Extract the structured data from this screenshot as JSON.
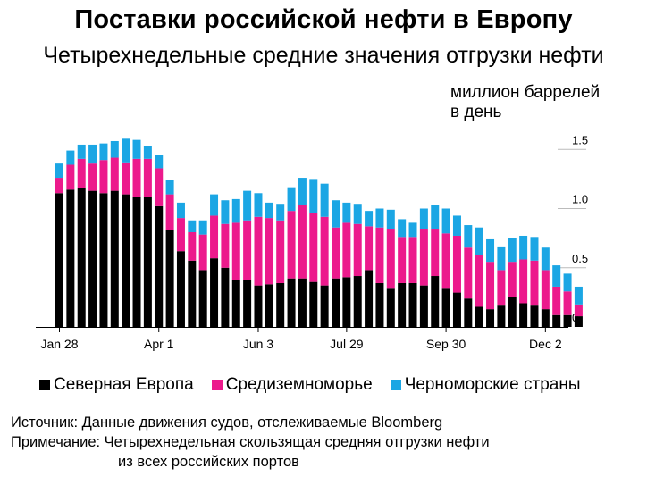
{
  "header": {
    "title": "Поставки российской нефти в Европу",
    "subtitle": "Четырехнедельные средние значения отгрузки нефти"
  },
  "unit_label_line1": "миллион баррелей",
  "unit_label_line2": "в день",
  "legend": [
    {
      "label": "Северная Европа",
      "color": "#000000"
    },
    {
      "label": "Средиземноморье",
      "color": "#ec1a8c"
    },
    {
      "label": "Черноморские страны",
      "color": "#1ba6e4"
    }
  ],
  "footer": {
    "source": "Источник: Данные движения судов, отслеживаемые Bloomberg",
    "note_line1": "Примечание: Четырехнедельная скользящая средняя отгрузки нефти",
    "note_line2": "из всех российских портов"
  },
  "chart_data": {
    "type": "bar",
    "stacked": true,
    "x_tick_labels": [
      "Jan 28",
      "Apr 1",
      "Jun 3",
      "Jul 29",
      "Sep 30",
      "Dec 2"
    ],
    "y_ticks": [
      "0",
      "0.5",
      "1.0",
      "1.5"
    ],
    "ylim": [
      0,
      1.6
    ],
    "series": [
      {
        "name": "Северная Европа",
        "color": "#000000",
        "values": [
          1.13,
          1.16,
          1.17,
          1.15,
          1.13,
          1.15,
          1.12,
          1.1,
          1.1,
          1.02,
          0.82,
          0.64,
          0.56,
          0.48,
          0.58,
          0.5,
          0.4,
          0.4,
          0.35,
          0.36,
          0.37,
          0.41,
          0.41,
          0.38,
          0.35,
          0.41,
          0.42,
          0.43,
          0.48,
          0.37,
          0.33,
          0.37,
          0.37,
          0.35,
          0.43,
          0.33,
          0.29,
          0.24,
          0.17,
          0.15,
          0.18,
          0.25,
          0.2,
          0.18,
          0.15,
          0.1,
          0.1,
          0.09
        ]
      },
      {
        "name": "Средиземноморье",
        "color": "#ec1a8c",
        "values": [
          0.13,
          0.21,
          0.25,
          0.23,
          0.28,
          0.28,
          0.27,
          0.32,
          0.32,
          0.32,
          0.3,
          0.28,
          0.24,
          0.3,
          0.36,
          0.37,
          0.48,
          0.5,
          0.58,
          0.56,
          0.53,
          0.57,
          0.62,
          0.58,
          0.58,
          0.43,
          0.46,
          0.44,
          0.37,
          0.47,
          0.5,
          0.39,
          0.39,
          0.48,
          0.4,
          0.46,
          0.48,
          0.43,
          0.44,
          0.4,
          0.3,
          0.3,
          0.37,
          0.38,
          0.33,
          0.24,
          0.2,
          0.1
        ]
      },
      {
        "name": "Черноморские страны",
        "color": "#1ba6e4",
        "values": [
          0.12,
          0.12,
          0.12,
          0.16,
          0.14,
          0.14,
          0.2,
          0.16,
          0.11,
          0.11,
          0.12,
          0.13,
          0.1,
          0.12,
          0.18,
          0.2,
          0.2,
          0.25,
          0.2,
          0.13,
          0.14,
          0.2,
          0.23,
          0.29,
          0.28,
          0.23,
          0.17,
          0.17,
          0.13,
          0.16,
          0.16,
          0.15,
          0.12,
          0.17,
          0.2,
          0.21,
          0.17,
          0.19,
          0.23,
          0.19,
          0.2,
          0.2,
          0.2,
          0.2,
          0.19,
          0.18,
          0.15,
          0.15
        ]
      }
    ]
  }
}
